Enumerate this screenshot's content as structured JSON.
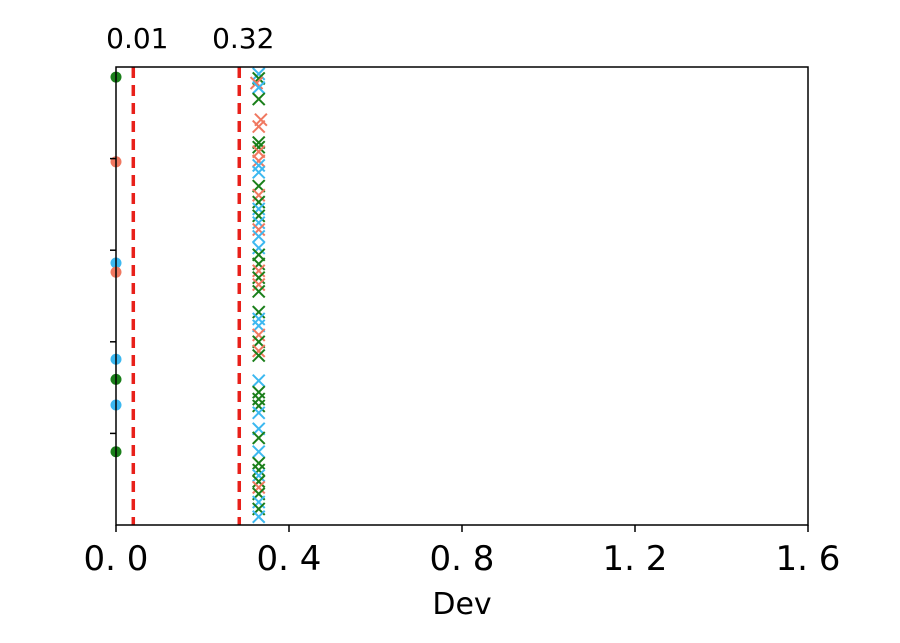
{
  "chart_data": {
    "type": "scatter",
    "xlabel": "Dev",
    "ylabel": "",
    "xlim": [
      0,
      1.6
    ],
    "ylim": [
      0,
      1
    ],
    "xticks": [
      0.0,
      0.4,
      0.8,
      1.2,
      1.6
    ],
    "xtick_labels": [
      "0. 0",
      "0. 4",
      "0. 8",
      "1. 2",
      "1. 6"
    ],
    "ytick_values": [
      0.2,
      0.4,
      0.6,
      0.8
    ],
    "grid": false,
    "colors": {
      "green": "#1a7f1a",
      "salmon": "#f07860",
      "skyblue": "#3cb8f0",
      "threshold": "#e8201a"
    },
    "vlines": [
      {
        "x": 0.04,
        "label": "0.01",
        "style": "dashed",
        "color": "#e8201a"
      },
      {
        "x": 0.285,
        "label": "0.32",
        "style": "dashed",
        "color": "#e8201a"
      }
    ],
    "series": [
      {
        "marker": "circle",
        "points": [
          {
            "x": 0.0,
            "y": 0.978,
            "color": "green"
          },
          {
            "x": 0.0,
            "y": 0.793,
            "color": "salmon"
          },
          {
            "x": 0.0,
            "y": 0.572,
            "color": "skyblue"
          },
          {
            "x": 0.0,
            "y": 0.552,
            "color": "salmon"
          },
          {
            "x": 0.0,
            "y": 0.362,
            "color": "skyblue"
          },
          {
            "x": 0.0,
            "y": 0.318,
            "color": "green"
          },
          {
            "x": 0.0,
            "y": 0.262,
            "color": "skyblue"
          },
          {
            "x": 0.0,
            "y": 0.16,
            "color": "green"
          }
        ]
      },
      {
        "marker": "x",
        "points": [
          {
            "x": 0.33,
            "y": 0.985,
            "color": "skyblue"
          },
          {
            "x": 0.33,
            "y": 0.975,
            "color": "green"
          },
          {
            "x": 0.325,
            "y": 0.965,
            "color": "salmon"
          },
          {
            "x": 0.33,
            "y": 0.955,
            "color": "skyblue"
          },
          {
            "x": 0.33,
            "y": 0.93,
            "color": "green"
          },
          {
            "x": 0.335,
            "y": 0.885,
            "color": "salmon"
          },
          {
            "x": 0.33,
            "y": 0.87,
            "color": "salmon"
          },
          {
            "x": 0.33,
            "y": 0.835,
            "color": "green"
          },
          {
            "x": 0.33,
            "y": 0.825,
            "color": "green"
          },
          {
            "x": 0.33,
            "y": 0.815,
            "color": "salmon"
          },
          {
            "x": 0.33,
            "y": 0.795,
            "color": "salmon"
          },
          {
            "x": 0.33,
            "y": 0.785,
            "color": "skyblue"
          },
          {
            "x": 0.33,
            "y": 0.77,
            "color": "skyblue"
          },
          {
            "x": 0.33,
            "y": 0.74,
            "color": "green"
          },
          {
            "x": 0.33,
            "y": 0.72,
            "color": "salmon"
          },
          {
            "x": 0.33,
            "y": 0.705,
            "color": "green"
          },
          {
            "x": 0.33,
            "y": 0.69,
            "color": "skyblue"
          },
          {
            "x": 0.33,
            "y": 0.675,
            "color": "green"
          },
          {
            "x": 0.33,
            "y": 0.66,
            "color": "skyblue"
          },
          {
            "x": 0.33,
            "y": 0.645,
            "color": "salmon"
          },
          {
            "x": 0.33,
            "y": 0.63,
            "color": "skyblue"
          },
          {
            "x": 0.33,
            "y": 0.605,
            "color": "skyblue"
          },
          {
            "x": 0.33,
            "y": 0.59,
            "color": "green"
          },
          {
            "x": 0.33,
            "y": 0.57,
            "color": "green"
          },
          {
            "x": 0.33,
            "y": 0.555,
            "color": "salmon"
          },
          {
            "x": 0.33,
            "y": 0.54,
            "color": "green"
          },
          {
            "x": 0.33,
            "y": 0.525,
            "color": "salmon"
          },
          {
            "x": 0.33,
            "y": 0.51,
            "color": "green"
          },
          {
            "x": 0.33,
            "y": 0.465,
            "color": "green"
          },
          {
            "x": 0.33,
            "y": 0.45,
            "color": "skyblue"
          },
          {
            "x": 0.33,
            "y": 0.435,
            "color": "skyblue"
          },
          {
            "x": 0.33,
            "y": 0.415,
            "color": "salmon"
          },
          {
            "x": 0.33,
            "y": 0.4,
            "color": "green"
          },
          {
            "x": 0.33,
            "y": 0.38,
            "color": "salmon"
          },
          {
            "x": 0.33,
            "y": 0.37,
            "color": "green"
          },
          {
            "x": 0.33,
            "y": 0.315,
            "color": "skyblue"
          },
          {
            "x": 0.33,
            "y": 0.29,
            "color": "green"
          },
          {
            "x": 0.33,
            "y": 0.275,
            "color": "green"
          },
          {
            "x": 0.33,
            "y": 0.26,
            "color": "green"
          },
          {
            "x": 0.33,
            "y": 0.245,
            "color": "skyblue"
          },
          {
            "x": 0.33,
            "y": 0.21,
            "color": "skyblue"
          },
          {
            "x": 0.33,
            "y": 0.19,
            "color": "green"
          },
          {
            "x": 0.33,
            "y": 0.16,
            "color": "skyblue"
          },
          {
            "x": 0.33,
            "y": 0.135,
            "color": "green"
          },
          {
            "x": 0.33,
            "y": 0.12,
            "color": "green"
          },
          {
            "x": 0.33,
            "y": 0.108,
            "color": "skyblue"
          },
          {
            "x": 0.33,
            "y": 0.095,
            "color": "green"
          },
          {
            "x": 0.33,
            "y": 0.082,
            "color": "salmon"
          },
          {
            "x": 0.33,
            "y": 0.068,
            "color": "green"
          },
          {
            "x": 0.33,
            "y": 0.05,
            "color": "skyblue"
          },
          {
            "x": 0.33,
            "y": 0.035,
            "color": "green"
          },
          {
            "x": 0.33,
            "y": 0.018,
            "color": "skyblue"
          }
        ]
      }
    ]
  }
}
